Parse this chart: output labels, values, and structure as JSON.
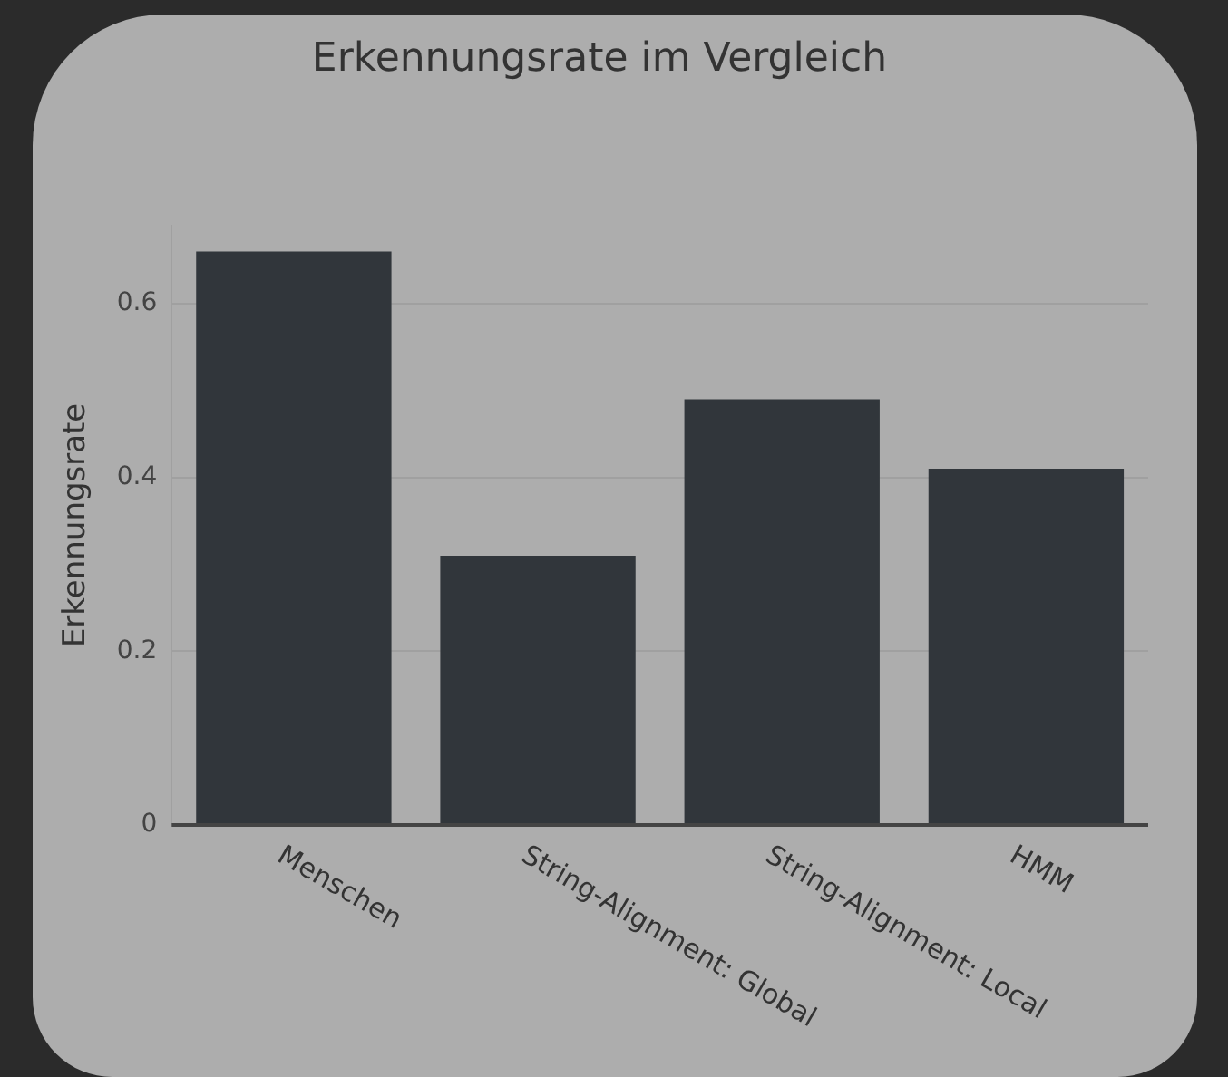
{
  "chart_data": {
    "type": "bar",
    "title": "Erkennungsrate im Vergleich",
    "ylabel": "Erkennungsrate",
    "categories": [
      "Menschen",
      "String-Alignment: Global",
      "String-Alignment: Local",
      "HMM"
    ],
    "values": [
      0.66,
      0.31,
      0.49,
      0.41
    ],
    "color": "#31363b",
    "ylim": [
      0,
      0.69
    ],
    "yticks": [
      0,
      0.2,
      0.4,
      0.6
    ],
    "grid": "y",
    "legend": false
  }
}
